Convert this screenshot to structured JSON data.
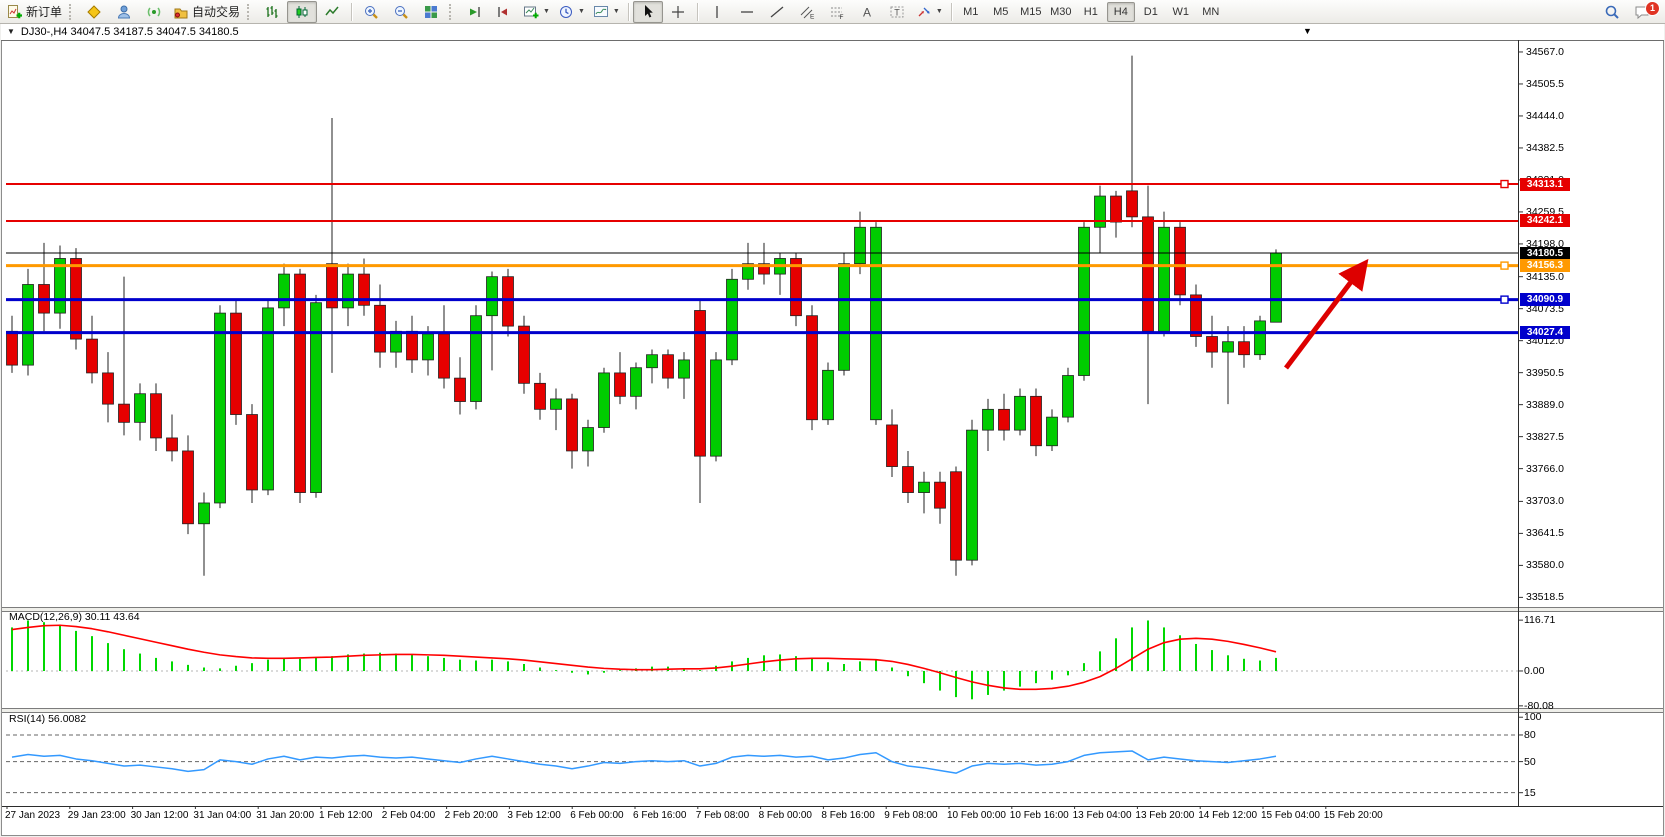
{
  "toolbar": {
    "new_order": "新订单",
    "auto_trading": "自动交易",
    "timeframes": [
      "M1",
      "M5",
      "M15",
      "M30",
      "H1",
      "H4",
      "D1",
      "W1",
      "MN"
    ],
    "selected_timeframe": "H4",
    "notification_count": "1"
  },
  "chart_window": {
    "title": "DJ30-,H4  34047.5 34187.5 34047.5 34180.5"
  },
  "price_axis": {
    "ticks": [
      34567.0,
      34505.5,
      34444.0,
      34382.5,
      34321.0,
      34259.5,
      34198.0,
      34135.0,
      34073.5,
      34012.0,
      33950.5,
      33889.0,
      33827.5,
      33766.0,
      33703.0,
      33641.5,
      33580.0,
      33518.5
    ]
  },
  "levels": [
    {
      "price": 34313.1,
      "label": "34313.1",
      "color": "#e60000",
      "width": 2,
      "marker": true
    },
    {
      "price": 34242.1,
      "label": "34242.1",
      "color": "#e60000",
      "width": 2,
      "marker": false
    },
    {
      "price": 34180.5,
      "label": "34180.5",
      "color": "#000000",
      "width": 1,
      "marker": false
    },
    {
      "price": 34156.3,
      "label": "34156.3",
      "color": "#ff9900",
      "width": 3,
      "marker": true
    },
    {
      "price": 34090.9,
      "label": "34090.9",
      "color": "#0000cc",
      "width": 3,
      "marker": true
    },
    {
      "price": 34027.4,
      "label": "34027.4",
      "color": "#0000cc",
      "width": 3,
      "marker": false
    }
  ],
  "annotation_arrow": {
    "color": "#dd0000"
  },
  "chart_data": {
    "type": "candlestick",
    "symbol": "DJ30-",
    "timeframe": "H4",
    "ohlc_current": {
      "open": 34047.5,
      "high": 34187.5,
      "low": 34047.5,
      "close": 34180.5
    },
    "ylim": [
      33500,
      34590
    ],
    "colors": {
      "up": "#00cc00",
      "down": "#e60000",
      "outline": "#222222"
    },
    "candles": [
      [
        34030,
        34060,
        33950,
        33965
      ],
      [
        33965,
        34150,
        33945,
        34120
      ],
      [
        34120,
        34200,
        34030,
        34065
      ],
      [
        34065,
        34195,
        34035,
        34170
      ],
      [
        34170,
        34190,
        33995,
        34015
      ],
      [
        34015,
        34060,
        33930,
        33950
      ],
      [
        33950,
        33990,
        33855,
        33890
      ],
      [
        33890,
        34135,
        33830,
        33855
      ],
      [
        33855,
        33930,
        33820,
        33910
      ],
      [
        33910,
        33930,
        33800,
        33825
      ],
      [
        33825,
        33870,
        33780,
        33800
      ],
      [
        33800,
        33830,
        33640,
        33660
      ],
      [
        33660,
        33720,
        33560,
        33700
      ],
      [
        33700,
        34080,
        33690,
        34065
      ],
      [
        34065,
        34090,
        33850,
        33870
      ],
      [
        33870,
        33890,
        33700,
        33725
      ],
      [
        33725,
        34090,
        33715,
        34075
      ],
      [
        34075,
        34160,
        34040,
        34140
      ],
      [
        34140,
        34150,
        33700,
        33720
      ],
      [
        33720,
        34100,
        33710,
        34085
      ],
      [
        34160,
        34440,
        33950,
        34075
      ],
      [
        34075,
        34160,
        34040,
        34140
      ],
      [
        34140,
        34170,
        34060,
        34080
      ],
      [
        34080,
        34120,
        33960,
        33990
      ],
      [
        33990,
        34050,
        33960,
        34030
      ],
      [
        34030,
        34060,
        33950,
        33975
      ],
      [
        33975,
        34040,
        33945,
        34025
      ],
      [
        34025,
        34080,
        33920,
        33940
      ],
      [
        33940,
        33980,
        33870,
        33895
      ],
      [
        33895,
        34080,
        33880,
        34060
      ],
      [
        34060,
        34145,
        33955,
        34135
      ],
      [
        34135,
        34150,
        34020,
        34040
      ],
      [
        34040,
        34060,
        33910,
        33930
      ],
      [
        33930,
        33950,
        33860,
        33880
      ],
      [
        33880,
        33920,
        33840,
        33900
      ],
      [
        33900,
        33910,
        33766,
        33800
      ],
      [
        33800,
        33860,
        33770,
        33845
      ],
      [
        33845,
        33960,
        33835,
        33950
      ],
      [
        33950,
        33990,
        33890,
        33905
      ],
      [
        33905,
        33970,
        33880,
        33960
      ],
      [
        33960,
        33995,
        33930,
        33985
      ],
      [
        33985,
        33995,
        33920,
        33940
      ],
      [
        33940,
        33990,
        33900,
        33975
      ],
      [
        34070,
        34090,
        33700,
        33790
      ],
      [
        33790,
        33990,
        33780,
        33975
      ],
      [
        33975,
        34150,
        33965,
        34130
      ],
      [
        34130,
        34200,
        34110,
        34160
      ],
      [
        34160,
        34200,
        34120,
        34140
      ],
      [
        34140,
        34180,
        34100,
        34170
      ],
      [
        34170,
        34180,
        34040,
        34060
      ],
      [
        34060,
        34080,
        33840,
        33860
      ],
      [
        33860,
        33970,
        33850,
        33955
      ],
      [
        33955,
        34180,
        33945,
        34160
      ],
      [
        34160,
        34260,
        34140,
        34230
      ],
      [
        33860,
        34240,
        33850,
        34230
      ],
      [
        33850,
        33880,
        33750,
        33770
      ],
      [
        33770,
        33800,
        33700,
        33720
      ],
      [
        33720,
        33760,
        33680,
        33740
      ],
      [
        33740,
        33760,
        33660,
        33690
      ],
      [
        33760,
        33770,
        33560,
        33590
      ],
      [
        33590,
        33860,
        33580,
        33840
      ],
      [
        33840,
        33900,
        33800,
        33880
      ],
      [
        33880,
        33910,
        33820,
        33840
      ],
      [
        33840,
        33920,
        33830,
        33905
      ],
      [
        33905,
        33920,
        33790,
        33810
      ],
      [
        33810,
        33880,
        33800,
        33865
      ],
      [
        33865,
        33960,
        33855,
        33945
      ],
      [
        33945,
        34240,
        33935,
        34230
      ],
      [
        34230,
        34310,
        34180,
        34290
      ],
      [
        34290,
        34300,
        34210,
        34240
      ],
      [
        34300,
        34560,
        34230,
        34250
      ],
      [
        34250,
        34310,
        33890,
        34030
      ],
      [
        34030,
        34260,
        34020,
        34230
      ],
      [
        34230,
        34240,
        34080,
        34100
      ],
      [
        34100,
        34120,
        34000,
        34020
      ],
      [
        34020,
        34060,
        33960,
        33990
      ],
      [
        33990,
        34040,
        33890,
        34010
      ],
      [
        34010,
        34040,
        33960,
        33985
      ],
      [
        33985,
        34060,
        33975,
        34050
      ],
      [
        34047.5,
        34187.5,
        34047.5,
        34180.5
      ]
    ],
    "indicators": [
      {
        "name": "MACD",
        "label": "MACD(12,26,9) 30.11 43.64",
        "values_main": 30.11,
        "values_signal": 43.64,
        "axis_ticks": [
          116.71,
          0.0,
          -80.08
        ],
        "ylim": [
          -85,
          140
        ],
        "colors": {
          "histogram": "#00d800",
          "signal": "#ff0000"
        },
        "histogram": [
          100,
          116,
          112,
          104,
          92,
          80,
          64,
          50,
          40,
          30,
          22,
          14,
          8,
          6,
          12,
          18,
          26,
          30,
          28,
          30,
          34,
          38,
          40,
          42,
          40,
          38,
          34,
          30,
          26,
          24,
          26,
          22,
          16,
          8,
          2,
          -4,
          -8,
          -4,
          2,
          6,
          10,
          10,
          6,
          2,
          12,
          22,
          30,
          36,
          38,
          34,
          28,
          20,
          16,
          22,
          26,
          8,
          -12,
          -28,
          -45,
          -60,
          -65,
          -55,
          -45,
          -36,
          -28,
          -20,
          -10,
          18,
          45,
          75,
          100,
          116,
          100,
          82,
          62,
          48,
          36,
          28,
          24,
          30
        ],
        "signal": [
          95,
          100,
          104,
          105,
          102,
          97,
          90,
          82,
          74,
          66,
          58,
          50,
          43,
          37,
          33,
          30,
          29,
          29,
          30,
          31,
          32,
          34,
          36,
          37,
          38,
          38,
          37,
          36,
          34,
          32,
          30,
          28,
          25,
          21,
          17,
          13,
          9,
          6,
          4,
          3,
          3,
          4,
          5,
          5,
          7,
          11,
          16,
          21,
          25,
          28,
          29,
          29,
          28,
          27,
          26,
          22,
          15,
          6,
          -4,
          -15,
          -25,
          -33,
          -39,
          -42,
          -42,
          -40,
          -35,
          -26,
          -13,
          6,
          28,
          50,
          65,
          73,
          75,
          73,
          68,
          61,
          53,
          44
        ]
      },
      {
        "name": "RSI",
        "label": "RSI(14) 56.0082",
        "current": 56.0082,
        "axis_ticks": [
          100,
          80,
          50,
          15
        ],
        "levels": [
          80,
          50,
          15
        ],
        "ylim": [
          0,
          107
        ],
        "colors": {
          "line": "#3399ff"
        },
        "values": [
          55,
          58,
          56,
          57,
          53,
          51,
          48,
          45,
          46,
          44,
          42,
          39,
          41,
          52,
          50,
          47,
          53,
          56,
          52,
          55,
          54,
          56,
          57,
          55,
          54,
          55,
          53,
          51,
          49,
          53,
          56,
          53,
          50,
          47,
          45,
          42,
          45,
          49,
          48,
          50,
          51,
          50,
          51,
          45,
          48,
          55,
          57,
          56,
          57,
          55,
          56,
          52,
          54,
          58,
          60,
          50,
          45,
          43,
          40,
          37,
          45,
          48,
          47,
          48,
          46,
          47,
          50,
          57,
          60,
          61,
          62,
          52,
          55,
          53,
          51,
          50,
          49,
          51,
          53,
          56
        ]
      }
    ],
    "x_labels": [
      "27 Jan 2023",
      "29 Jan 23:00",
      "30 Jan 12:00",
      "31 Jan 04:00",
      "31 Jan 20:00",
      "1 Feb 12:00",
      "2 Feb 04:00",
      "2 Feb 20:00",
      "3 Feb 12:00",
      "6 Feb 00:00",
      "6 Feb 16:00",
      "7 Feb 08:00",
      "8 Feb 00:00",
      "8 Feb 16:00",
      "9 Feb 08:00",
      "10 Feb 00:00",
      "10 Feb 16:00",
      "13 Feb 04:00",
      "13 Feb 20:00",
      "14 Feb 12:00",
      "15 Feb 04:00",
      "15 Feb 20:00"
    ]
  }
}
